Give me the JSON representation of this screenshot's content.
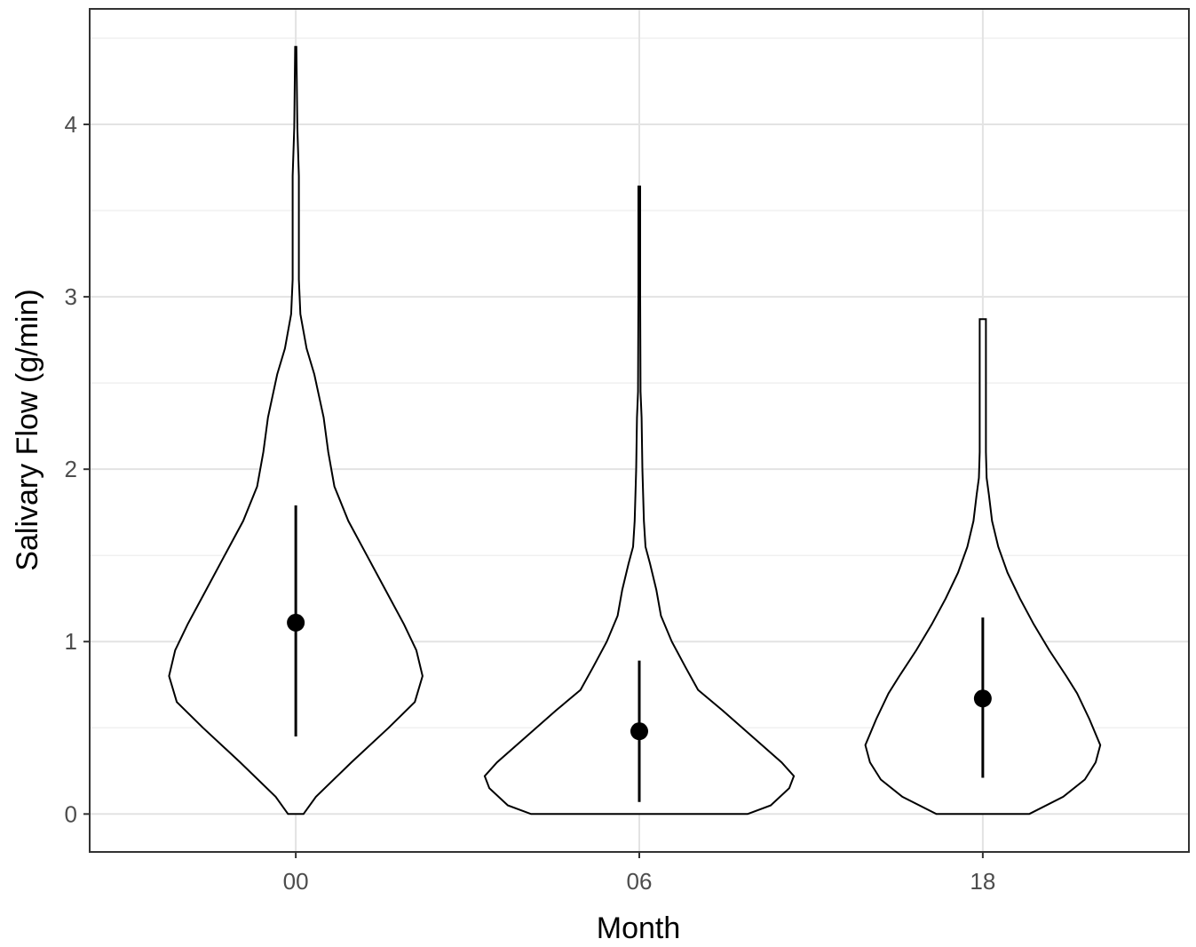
{
  "chart_data": {
    "type": "violin",
    "xlabel": "Month",
    "ylabel": "Salivary Flow (g/min)",
    "categories": [
      "00",
      "06",
      "18"
    ],
    "ylim": [
      -0.22,
      4.67
    ],
    "yticks": [
      0,
      1,
      2,
      3,
      4
    ],
    "grid": true,
    "legend": "none",
    "series": [
      {
        "category": "00",
        "mean": 1.11,
        "sd_low": 0.45,
        "sd_high": 1.79,
        "max": 4.45,
        "profile": [
          [
            0.0,
            0.05
          ],
          [
            0.1,
            0.13
          ],
          [
            0.3,
            0.36
          ],
          [
            0.5,
            0.6
          ],
          [
            0.65,
            0.77
          ],
          [
            0.8,
            0.82
          ],
          [
            0.95,
            0.78
          ],
          [
            1.1,
            0.7
          ],
          [
            1.3,
            0.58
          ],
          [
            1.5,
            0.46
          ],
          [
            1.7,
            0.34
          ],
          [
            1.9,
            0.25
          ],
          [
            2.1,
            0.21
          ],
          [
            2.3,
            0.18
          ],
          [
            2.55,
            0.12
          ],
          [
            2.7,
            0.07
          ],
          [
            2.9,
            0.03
          ],
          [
            3.1,
            0.02
          ],
          [
            3.7,
            0.02
          ],
          [
            3.98,
            0.01
          ],
          [
            4.45,
            0.004
          ]
        ]
      },
      {
        "category": "06",
        "mean": 0.48,
        "sd_low": 0.07,
        "sd_high": 0.89,
        "max": 3.64,
        "profile": [
          [
            0.0,
            0.7
          ],
          [
            0.05,
            0.85
          ],
          [
            0.15,
            0.97
          ],
          [
            0.22,
            1.0
          ],
          [
            0.3,
            0.92
          ],
          [
            0.45,
            0.73
          ],
          [
            0.6,
            0.54
          ],
          [
            0.72,
            0.38
          ],
          [
            0.85,
            0.3
          ],
          [
            1.0,
            0.21
          ],
          [
            1.15,
            0.14
          ],
          [
            1.3,
            0.11
          ],
          [
            1.45,
            0.07
          ],
          [
            1.55,
            0.04
          ],
          [
            1.7,
            0.03
          ],
          [
            2.0,
            0.02
          ],
          [
            2.3,
            0.015
          ],
          [
            2.45,
            0.008
          ],
          [
            3.0,
            0.006
          ],
          [
            3.64,
            0.006
          ]
        ]
      },
      {
        "category": "18",
        "mean": 0.67,
        "sd_low": 0.21,
        "sd_high": 1.14,
        "max": 2.87,
        "profile": [
          [
            0.0,
            0.3
          ],
          [
            0.1,
            0.52
          ],
          [
            0.2,
            0.66
          ],
          [
            0.3,
            0.73
          ],
          [
            0.4,
            0.76
          ],
          [
            0.55,
            0.69
          ],
          [
            0.7,
            0.61
          ],
          [
            0.8,
            0.54
          ],
          [
            0.95,
            0.43
          ],
          [
            1.1,
            0.33
          ],
          [
            1.25,
            0.24
          ],
          [
            1.4,
            0.16
          ],
          [
            1.55,
            0.1
          ],
          [
            1.7,
            0.06
          ],
          [
            1.85,
            0.04
          ],
          [
            1.95,
            0.025
          ],
          [
            2.1,
            0.02
          ],
          [
            2.5,
            0.02
          ],
          [
            2.87,
            0.02
          ]
        ]
      }
    ]
  }
}
